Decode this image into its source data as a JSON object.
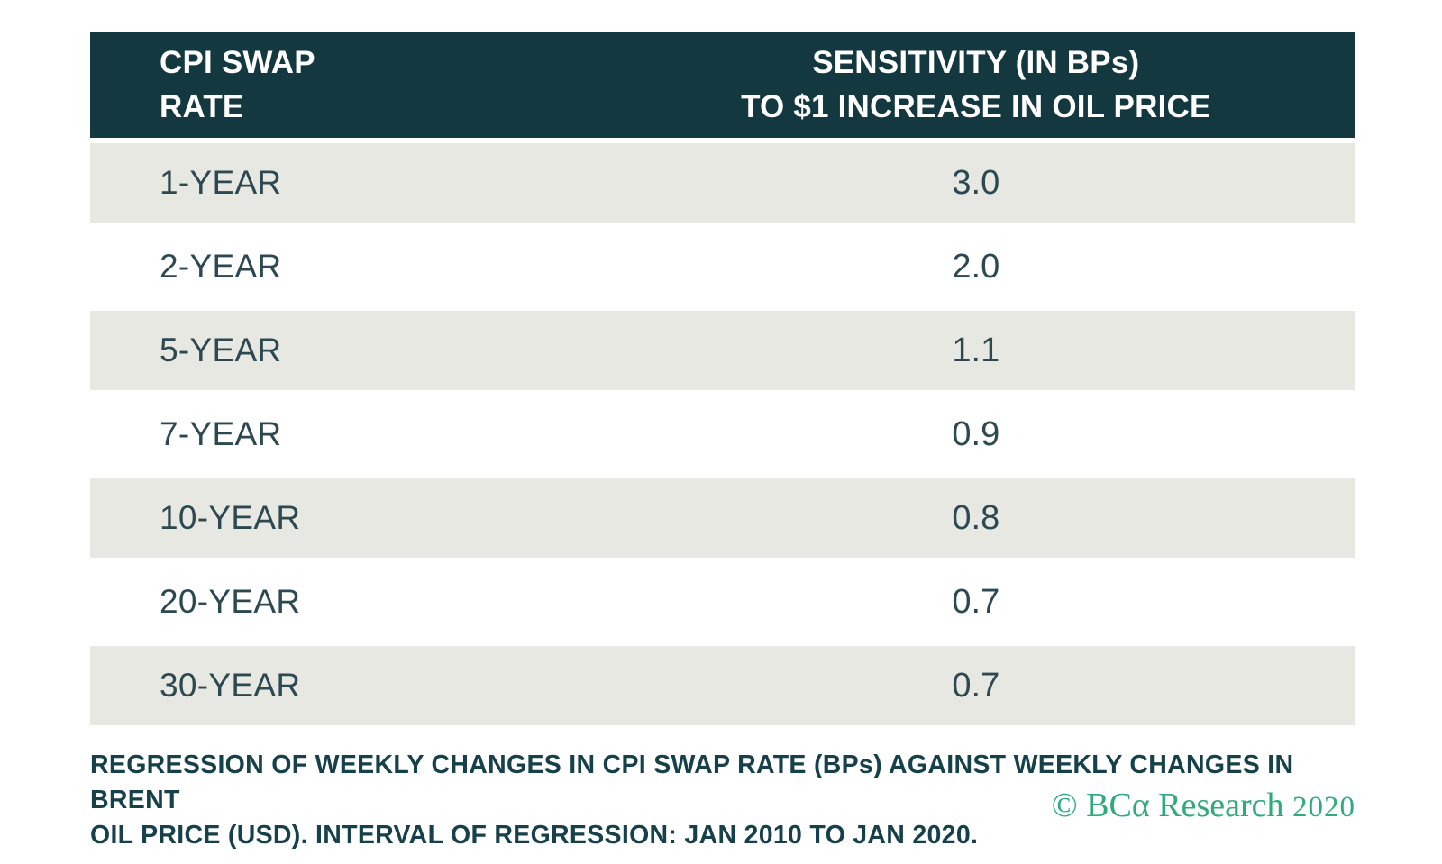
{
  "table": {
    "header": {
      "col1": "CPI SWAP\nRATE",
      "col2": "SENSITIVITY (IN BPs)\nTO $1 INCREASE IN OIL PRICE"
    },
    "rows": [
      {
        "label": "1-YEAR",
        "value": "3.0"
      },
      {
        "label": "2-YEAR",
        "value": "2.0"
      },
      {
        "label": "5-YEAR",
        "value": "1.1"
      },
      {
        "label": "7-YEAR",
        "value": "0.9"
      },
      {
        "label": "10-YEAR",
        "value": "0.8"
      },
      {
        "label": "20-YEAR",
        "value": "0.7"
      },
      {
        "label": "30-YEAR",
        "value": "0.7"
      }
    ]
  },
  "footnote": {
    "lines": [
      "REGRESSION OF WEEKLY CHANGES IN CPI SWAP RATE (BPs) AGAINST WEEKLY CHANGES IN BRENT",
      "OIL PRICE (USD). INTERVAL OF REGRESSION: JAN 2010 TO JAN 2020."
    ]
  },
  "attribution": {
    "text": "© BCα Research",
    "year": "2020"
  },
  "colors": {
    "header_bg": "#14383f",
    "header_text": "#ffffff",
    "row_alt_bg": "#e8e8e3",
    "body_text": "#2c4850",
    "footnote_text": "#16404a",
    "attribution_green": "#2eaa7e"
  },
  "chart_data": {
    "type": "table",
    "columns": [
      "CPI SWAP RATE",
      "SENSITIVITY (IN BPs) TO $1 INCREASE IN OIL PRICE"
    ],
    "categories": [
      "1-YEAR",
      "2-YEAR",
      "5-YEAR",
      "7-YEAR",
      "10-YEAR",
      "20-YEAR",
      "30-YEAR"
    ],
    "values": [
      3.0,
      2.0,
      1.1,
      0.9,
      0.8,
      0.7,
      0.7
    ],
    "footnote": "REGRESSION OF WEEKLY CHANGES IN CPI SWAP RATE (BPs) AGAINST WEEKLY CHANGES IN BRENT OIL PRICE (USD). INTERVAL OF REGRESSION: JAN 2010 TO JAN 2020.",
    "source": "© BCα Research 2020"
  }
}
